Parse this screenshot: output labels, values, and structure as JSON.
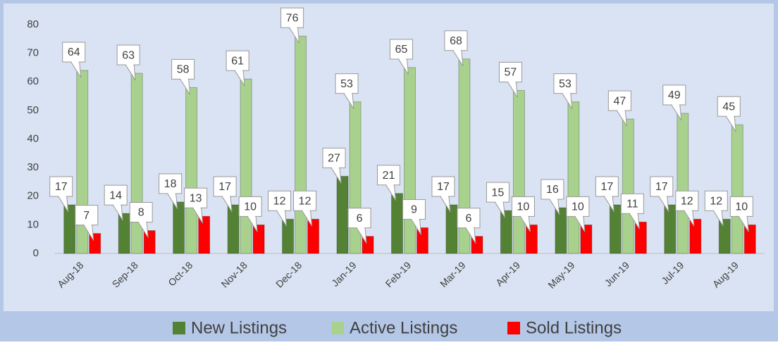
{
  "chart_data": {
    "type": "bar",
    "categories": [
      "Aug-18",
      "Sep-18",
      "Oct-18",
      "Nov-18",
      "Dec-18",
      "Jan-19",
      "Feb-19",
      "Mar-19",
      "Apr-19",
      "May-19",
      "Jun-19",
      "Jul-19",
      "Aug-19"
    ],
    "series": [
      {
        "name": "New Listings",
        "color": "#548235",
        "values": [
          17,
          14,
          18,
          17,
          12,
          27,
          21,
          17,
          15,
          16,
          17,
          17,
          12
        ]
      },
      {
        "name": "Active Listings",
        "color": "#a9d18e",
        "values": [
          64,
          63,
          58,
          61,
          76,
          53,
          65,
          68,
          57,
          53,
          47,
          49,
          45
        ]
      },
      {
        "name": "Sold Listings",
        "color": "#ff0000",
        "values": [
          7,
          8,
          13,
          10,
          12,
          6,
          9,
          6,
          10,
          10,
          11,
          12,
          10
        ]
      }
    ],
    "ylim": [
      0,
      80
    ],
    "yticks": [
      0,
      10,
      20,
      30,
      40,
      50,
      60,
      70,
      80
    ],
    "grid": false,
    "legend": "bottom"
  }
}
